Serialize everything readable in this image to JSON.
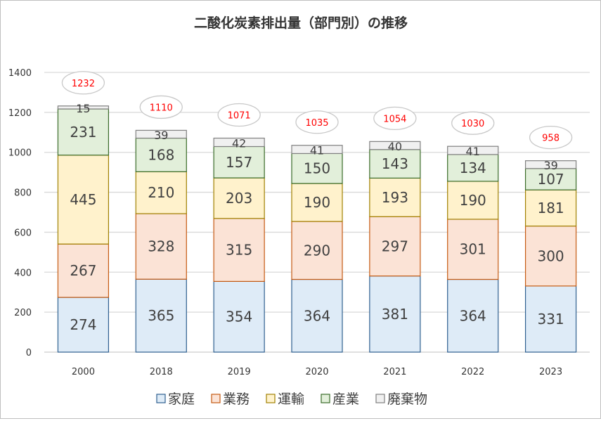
{
  "chart_data": {
    "type": "bar",
    "stacked": true,
    "title": "二酸化炭素排出量（部門別）の推移",
    "categories": [
      "2000",
      "2018",
      "2019",
      "2020",
      "2021",
      "2022",
      "2023"
    ],
    "series": [
      {
        "name": "家庭",
        "values": [
          274,
          365,
          354,
          364,
          381,
          364,
          331
        ],
        "fill": "#deebf7",
        "stroke": "#2e5f8f"
      },
      {
        "name": "業務",
        "values": [
          267,
          328,
          315,
          290,
          297,
          301,
          300
        ],
        "fill": "#fbe3d6",
        "stroke": "#c55a11"
      },
      {
        "name": "運輸",
        "values": [
          445,
          210,
          203,
          190,
          193,
          190,
          181
        ],
        "fill": "#fff2cc",
        "stroke": "#a08000"
      },
      {
        "name": "産業",
        "values": [
          231,
          168,
          157,
          150,
          143,
          134,
          107
        ],
        "fill": "#e2efda",
        "stroke": "#3a6b28"
      },
      {
        "name": "廃棄物",
        "values": [
          15,
          39,
          42,
          41,
          40,
          41,
          39
        ],
        "fill": "#f0f0f0",
        "stroke": "#7f7f7f"
      }
    ],
    "totals": [
      1232,
      1110,
      1071,
      1035,
      1054,
      1030,
      958
    ],
    "total_color": "#ff0000",
    "ylim": [
      0,
      1400
    ],
    "yticks": [
      0,
      200,
      400,
      600,
      800,
      1000,
      1200,
      1400
    ],
    "grid": true,
    "legend": "bottom"
  }
}
